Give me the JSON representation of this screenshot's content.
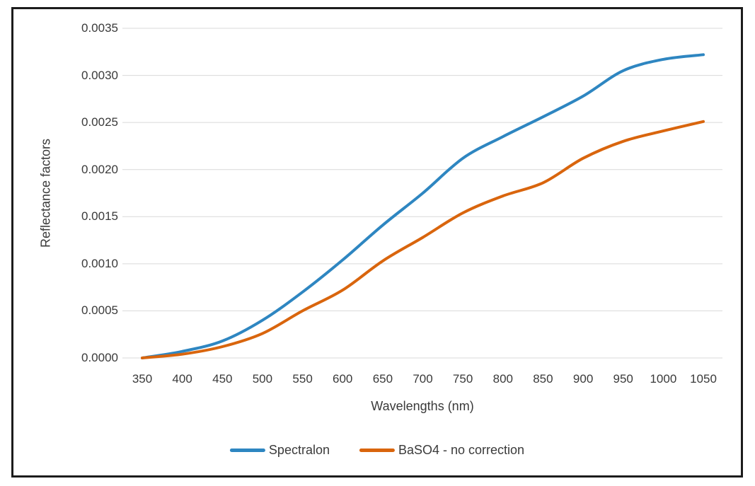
{
  "chart_data": {
    "type": "line",
    "title": "",
    "xlabel": "Wavelengths (nm)",
    "ylabel": "Reflectance factors",
    "xlim": [
      350,
      1050
    ],
    "ylim": [
      0,
      0.0035
    ],
    "y_tick_step": 0.0005,
    "grid": true,
    "legend_position": "bottom",
    "gridline_color": "#d9d9d9",
    "text_color": "#3a3a3a",
    "x": [
      350,
      400,
      450,
      500,
      550,
      600,
      650,
      700,
      750,
      800,
      850,
      900,
      950,
      1000,
      1050
    ],
    "x_tick_labels": [
      "350",
      "400",
      "450",
      "500",
      "550",
      "600",
      "650",
      "700",
      "750",
      "800",
      "850",
      "900",
      "950",
      "1000",
      "1050"
    ],
    "y_tick_labels": [
      "0.0000",
      "0.0005",
      "0.0010",
      "0.0015",
      "0.0020",
      "0.0025",
      "0.0030",
      "0.0035"
    ],
    "series": [
      {
        "name": "Spectralon",
        "color": "#2e86c1",
        "values": [
          0.0,
          7e-05,
          0.00018,
          0.0004,
          0.0007,
          0.00104,
          0.00141,
          0.00175,
          0.00212,
          0.00235,
          0.00256,
          0.00278,
          0.00305,
          0.00317,
          0.00322
        ]
      },
      {
        "name": "BaSO4 - no correction",
        "color": "#d9650d",
        "values": [
          0.0,
          4e-05,
          0.00012,
          0.00026,
          0.0005,
          0.00072,
          0.00103,
          0.00128,
          0.00154,
          0.00172,
          0.00186,
          0.00212,
          0.0023,
          0.00241,
          0.00251
        ]
      }
    ]
  }
}
